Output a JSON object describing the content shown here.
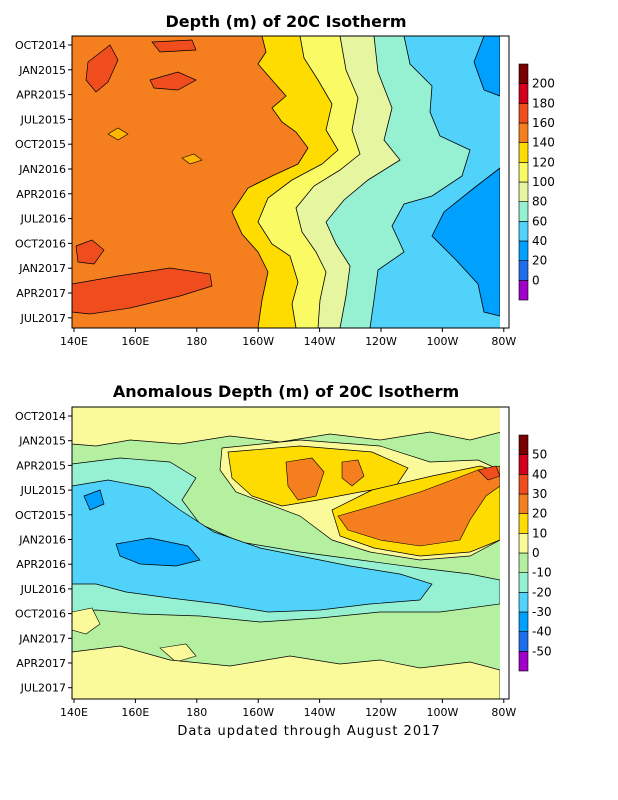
{
  "footer": "Data updated through August 2017",
  "chart_data": [
    {
      "type": "heatmap",
      "title": "Depth (m) of 20C Isotherm",
      "xlabel": "",
      "ylabel": "",
      "x_tick_labels": [
        "140E",
        "160E",
        "180",
        "160W",
        "140W",
        "120W",
        "100W",
        "80W"
      ],
      "x_range": [
        "140E",
        "80W"
      ],
      "y_tick_labels": [
        "OCT2014",
        "JAN2015",
        "APR2015",
        "JUL2015",
        "OCT2015",
        "JAN2016",
        "APR2016",
        "JUL2016",
        "OCT2016",
        "JAN2017",
        "APR2017",
        "JUL2017"
      ],
      "y_range": [
        "OCT2014",
        "AUG2017"
      ],
      "colorbar": {
        "levels": [
          0,
          20,
          40,
          60,
          80,
          100,
          120,
          140,
          160,
          180,
          200
        ],
        "colors": [
          "#a000c8",
          "#1e6eeb",
          "#00a0ff",
          "#50d2fa",
          "#96f0d2",
          "#e6f5a0",
          "#fafa64",
          "#ffdc00",
          "#f57f1e",
          "#f04d1e",
          "#d2001e",
          "#780000"
        ]
      },
      "grid": false,
      "legend": "colorbar-right"
    },
    {
      "type": "heatmap",
      "title": "Anomalous Depth (m) of 20C Isotherm",
      "xlabel": "",
      "ylabel": "",
      "x_tick_labels": [
        "140E",
        "160E",
        "180",
        "160W",
        "140W",
        "120W",
        "100W",
        "80W"
      ],
      "x_range": [
        "140E",
        "80W"
      ],
      "y_tick_labels": [
        "OCT2014",
        "JAN2015",
        "APR2015",
        "JUL2015",
        "OCT2015",
        "JAN2016",
        "APR2016",
        "JUL2016",
        "OCT2016",
        "JAN2017",
        "APR2017",
        "JUL2017"
      ],
      "y_range": [
        "OCT2014",
        "AUG2017"
      ],
      "colorbar": {
        "levels": [
          -50,
          -40,
          -30,
          -20,
          -10,
          0,
          10,
          20,
          30,
          40,
          50
        ],
        "colors": [
          "#a000c8",
          "#1e6eeb",
          "#00a0ff",
          "#50d2fa",
          "#96f0d2",
          "#b4f0a0",
          "#fafa9b",
          "#ffdc00",
          "#f57f1e",
          "#f04d1e",
          "#d2001e",
          "#780000"
        ]
      },
      "grid": false,
      "legend": "colorbar-right"
    }
  ]
}
